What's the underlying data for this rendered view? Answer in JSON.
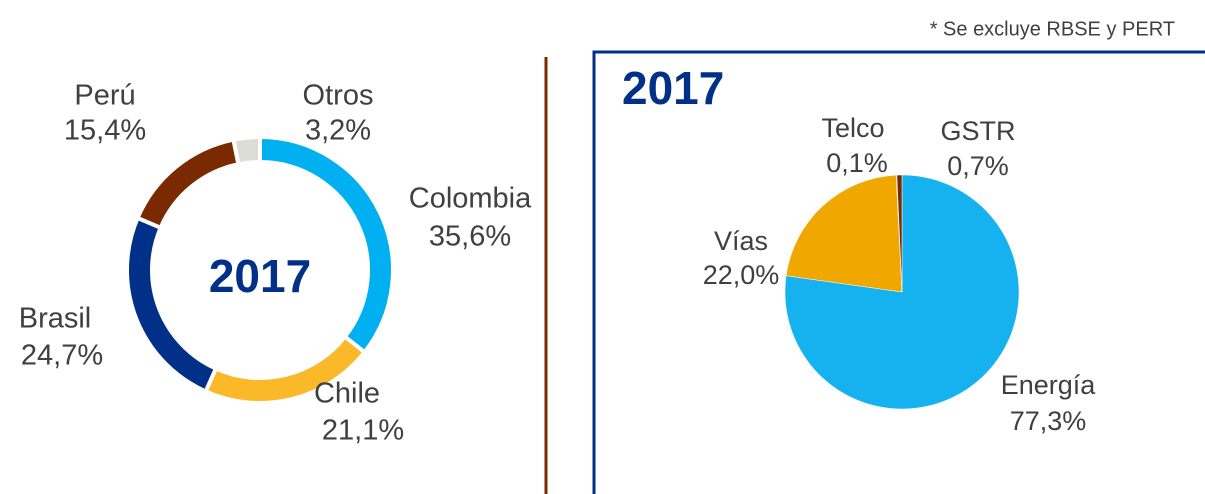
{
  "note": "* Se excluye RBSE y PERT",
  "chart_data": [
    {
      "type": "donut",
      "center_label": "2017",
      "categories": [
        "Colombia",
        "Chile",
        "Brasil",
        "Perú",
        "Otros"
      ],
      "values": [
        35.6,
        21.1,
        24.7,
        15.4,
        3.2
      ],
      "value_labels": [
        "35,6%",
        "21,1%",
        "24,7%",
        "15,4%",
        "3,2%"
      ],
      "colors": [
        "#00b0f0",
        "#fbb829",
        "#003087",
        "#7b2900",
        "#dcdcd6"
      ]
    },
    {
      "type": "pie",
      "title": "2017",
      "categories": [
        "Energía",
        "Vías",
        "Telco",
        "GSTR"
      ],
      "values": [
        77.3,
        22.0,
        0.1,
        0.7
      ],
      "value_labels": [
        "77,3%",
        "22,0%",
        "0,1%",
        "0,7%"
      ],
      "colors": [
        "#16b2ef",
        "#f0a800",
        "#8a8a8a",
        "#7b2900"
      ]
    }
  ]
}
